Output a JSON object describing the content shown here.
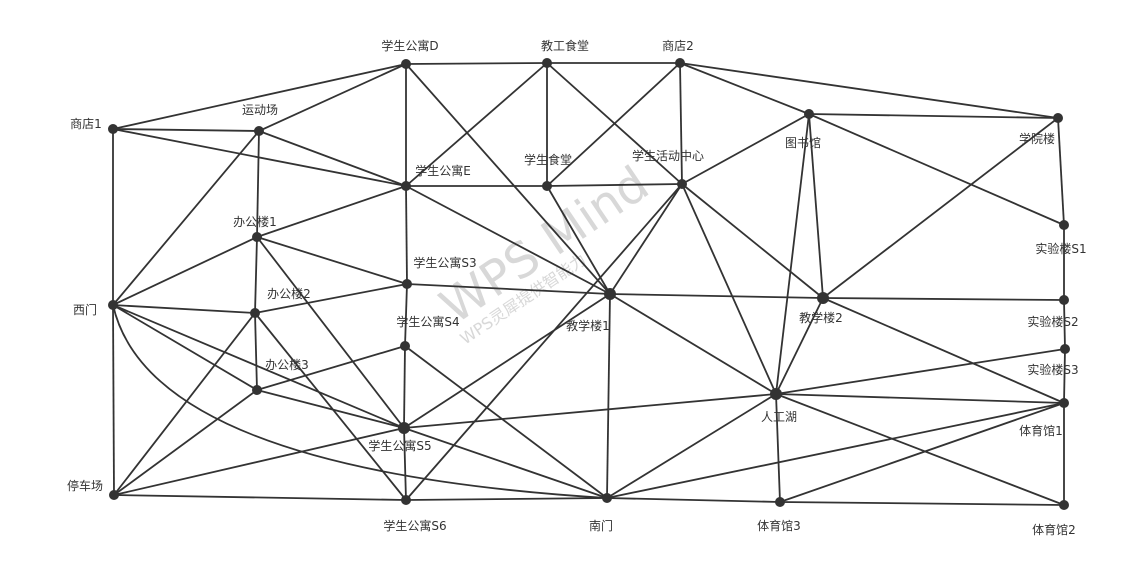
{
  "watermark": {
    "brand": "WPS Mind",
    "sub": "WPS灵犀提供智能力",
    "color": "#d8d8d8"
  },
  "colors": {
    "edge": "#333333",
    "node": "#333333",
    "background": "#ffffff"
  },
  "nodes": [
    {
      "id": "dorm_d",
      "label": "学生公寓D"
    },
    {
      "id": "canteen_staff",
      "label": "教工食堂"
    },
    {
      "id": "shop2",
      "label": "商店2"
    },
    {
      "id": "shop1",
      "label": "商店1"
    },
    {
      "id": "playground",
      "label": "运动场"
    },
    {
      "id": "library",
      "label": "图书馆"
    },
    {
      "id": "college",
      "label": "学院楼"
    },
    {
      "id": "dorm_e",
      "label": "学生公寓E"
    },
    {
      "id": "canteen_student",
      "label": "学生食堂"
    },
    {
      "id": "activity",
      "label": "学生活动中心"
    },
    {
      "id": "office1",
      "label": "办公楼1"
    },
    {
      "id": "lab1",
      "label": "实验楼S1"
    },
    {
      "id": "dorm_s3",
      "label": "学生公寓S3"
    },
    {
      "id": "west_gate",
      "label": "西门"
    },
    {
      "id": "office2",
      "label": "办公楼2"
    },
    {
      "id": "teach1",
      "label": "教学楼1"
    },
    {
      "id": "teach2",
      "label": "教学楼2"
    },
    {
      "id": "lab2",
      "label": "实验楼S2"
    },
    {
      "id": "dorm_s4",
      "label": "学生公寓S4"
    },
    {
      "id": "lab3",
      "label": "实验楼S3"
    },
    {
      "id": "office3",
      "label": "办公楼3"
    },
    {
      "id": "lake",
      "label": "人工湖"
    },
    {
      "id": "gym1",
      "label": "体育馆1"
    },
    {
      "id": "dorm_s5",
      "label": "学生公寓S5"
    },
    {
      "id": "parking",
      "label": "停车场"
    },
    {
      "id": "dorm_s6",
      "label": "学生公寓S6"
    },
    {
      "id": "south_gate",
      "label": "南门"
    },
    {
      "id": "gym3",
      "label": "体育馆3"
    },
    {
      "id": "gym2",
      "label": "体育馆2"
    }
  ],
  "edges": [
    [
      "shop1",
      "dorm_d"
    ],
    [
      "shop1",
      "playground"
    ],
    [
      "shop1",
      "dorm_e"
    ],
    [
      "shop1",
      "west_gate"
    ],
    [
      "dorm_d",
      "canteen_staff"
    ],
    [
      "canteen_staff",
      "shop2"
    ],
    [
      "shop2",
      "library"
    ],
    [
      "shop2",
      "college"
    ],
    [
      "library",
      "college"
    ],
    [
      "college",
      "lab1"
    ],
    [
      "lab1",
      "lab2"
    ],
    [
      "dorm_d",
      "dorm_e"
    ],
    [
      "dorm_d",
      "teach1"
    ],
    [
      "dorm_d",
      "playground"
    ],
    [
      "canteen_staff",
      "dorm_e"
    ],
    [
      "canteen_staff",
      "canteen_student"
    ],
    [
      "canteen_staff",
      "activity"
    ],
    [
      "shop2",
      "canteen_student"
    ],
    [
      "shop2",
      "activity"
    ],
    [
      "library",
      "activity"
    ],
    [
      "library",
      "teach2"
    ],
    [
      "library",
      "lake"
    ],
    [
      "library",
      "lab1"
    ],
    [
      "college",
      "teach2"
    ],
    [
      "playground",
      "dorm_e"
    ],
    [
      "playground",
      "office1"
    ],
    [
      "playground",
      "west_gate"
    ],
    [
      "dorm_e",
      "canteen_student"
    ],
    [
      "dorm_e",
      "office1"
    ],
    [
      "dorm_e",
      "dorm_s3"
    ],
    [
      "dorm_e",
      "teach1"
    ],
    [
      "canteen_student",
      "activity"
    ],
    [
      "canteen_student",
      "teach1"
    ],
    [
      "activity",
      "teach1"
    ],
    [
      "activity",
      "teach2"
    ],
    [
      "activity",
      "lake"
    ],
    [
      "activity",
      "dorm_s6"
    ],
    [
      "office1",
      "west_gate"
    ],
    [
      "office1",
      "office2"
    ],
    [
      "office1",
      "dorm_s3"
    ],
    [
      "office1",
      "dorm_s5"
    ],
    [
      "dorm_s3",
      "dorm_s4"
    ],
    [
      "dorm_s3",
      "office2"
    ],
    [
      "teach1",
      "dorm_s3"
    ],
    [
      "teach1",
      "teach2"
    ],
    [
      "teach1",
      "dorm_s5"
    ],
    [
      "teach1",
      "south_gate"
    ],
    [
      "teach1",
      "lake"
    ],
    [
      "teach2",
      "lab2"
    ],
    [
      "teach2",
      "gym1"
    ],
    [
      "teach2",
      "lake"
    ],
    [
      "west_gate",
      "office2"
    ],
    [
      "west_gate",
      "office3"
    ],
    [
      "west_gate",
      "parking"
    ],
    [
      "west_gate",
      "dorm_s5"
    ],
    [
      "office2",
      "office3"
    ],
    [
      "office2",
      "parking"
    ],
    [
      "office2",
      "dorm_s6"
    ],
    [
      "dorm_s4",
      "office3"
    ],
    [
      "dorm_s4",
      "dorm_s5"
    ],
    [
      "dorm_s4",
      "south_gate"
    ],
    [
      "office3",
      "dorm_s5"
    ],
    [
      "office3",
      "parking"
    ],
    [
      "dorm_s5",
      "lake"
    ],
    [
      "dorm_s5",
      "parking"
    ],
    [
      "dorm_s5",
      "dorm_s6"
    ],
    [
      "dorm_s5",
      "south_gate"
    ],
    [
      "lake",
      "lab3"
    ],
    [
      "lake",
      "gym1"
    ],
    [
      "lake",
      "gym2"
    ],
    [
      "lake",
      "gym3"
    ],
    [
      "lake",
      "south_gate"
    ],
    [
      "lab2",
      "lab3"
    ],
    [
      "lab3",
      "gym1"
    ],
    [
      "gym1",
      "gym2"
    ],
    [
      "gym1",
      "south_gate"
    ],
    [
      "gym1",
      "gym3"
    ],
    [
      "parking",
      "dorm_s6"
    ],
    [
      "dorm_s6",
      "south_gate"
    ],
    [
      "south_gate",
      "gym3"
    ],
    [
      "gym3",
      "gym2"
    ]
  ],
  "curved_edges": [
    [
      "west_gate",
      "south_gate"
    ]
  ]
}
